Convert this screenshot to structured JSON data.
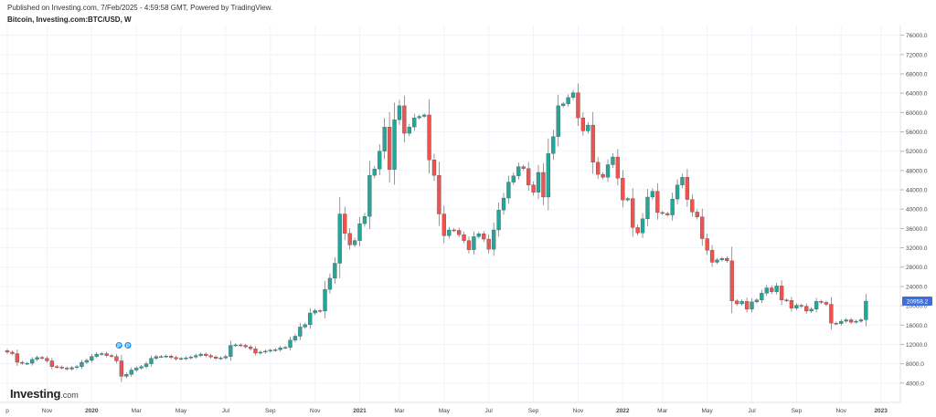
{
  "header": {
    "published": "Published on Investing.com, 7/Feb/2025 - 4:59:58 GMT, Powered by TradingView.",
    "symbol": "Bitcoin, Investing.com:BTC/USD, W"
  },
  "brand": {
    "name": "Investing",
    "suffix": ".com"
  },
  "markers": {
    "label": "P"
  },
  "colors": {
    "up": "#26a69a",
    "down": "#ef5350",
    "last_price_bg": "#3d6ee0",
    "grid": "#f0f3fa",
    "axis_text": "#4a4a4a"
  },
  "chart_data": {
    "type": "candlestick",
    "title": "Bitcoin, Investing.com:BTC/USD, W",
    "ylim": [
      0,
      78000
    ],
    "y_ticks": [
      "76000.0",
      "72000.0",
      "68000.0",
      "64000.0",
      "60000.0",
      "56000.0",
      "52000.0",
      "48000.0",
      "44000.0",
      "40000.0",
      "36000.0",
      "32000.0",
      "28000.0",
      "24000.0",
      "20000.0",
      "16000.0",
      "12000.0",
      "8000.0",
      "4000.0"
    ],
    "y_tick_values": [
      76000,
      72000,
      68000,
      64000,
      60000,
      56000,
      52000,
      48000,
      44000,
      40000,
      36000,
      32000,
      28000,
      24000,
      20000,
      16000,
      12000,
      8000,
      4000
    ],
    "x_labels": [
      {
        "label": "p",
        "week": 0
      },
      {
        "label": "Nov",
        "week": 8
      },
      {
        "label": "2020",
        "week": 17
      },
      {
        "label": "Mar",
        "week": 26
      },
      {
        "label": "May",
        "week": 35
      },
      {
        "label": "Jul",
        "week": 44
      },
      {
        "label": "Sep",
        "week": 53
      },
      {
        "label": "Nov",
        "week": 62
      },
      {
        "label": "2021",
        "week": 71
      },
      {
        "label": "Mar",
        "week": 79
      },
      {
        "label": "May",
        "week": 88
      },
      {
        "label": "Jul",
        "week": 97
      },
      {
        "label": "Sep",
        "week": 106
      },
      {
        "label": "Nov",
        "week": 115
      },
      {
        "label": "2022",
        "week": 124
      },
      {
        "label": "Mar",
        "week": 132
      },
      {
        "label": "May",
        "week": 141
      },
      {
        "label": "Jul",
        "week": 150
      },
      {
        "label": "Sep",
        "week": 159
      },
      {
        "label": "Nov",
        "week": 168
      },
      {
        "label": "2023",
        "week": 176
      }
    ],
    "last_price": 20958.2,
    "last_price_label": "20958.2",
    "closes": [
      10400,
      10100,
      8300,
      8100,
      8100,
      8900,
      9300,
      9100,
      8600,
      7400,
      7300,
      7100,
      6900,
      7200,
      7400,
      8300,
      8700,
      9500,
      10000,
      10100,
      9700,
      9500,
      8600,
      5400,
      5800,
      6700,
      7100,
      7400,
      8000,
      9100,
      9500,
      9500,
      9600,
      9300,
      9000,
      9100,
      9200,
      9400,
      9700,
      10000,
      9700,
      9400,
      9100,
      9200,
      9500,
      11800,
      11900,
      11800,
      11500,
      11100,
      10200,
      10400,
      10600,
      10800,
      10900,
      11300,
      11400,
      12900,
      13700,
      15600,
      16100,
      18500,
      19000,
      18900,
      23400,
      25700,
      28800,
      39000,
      35000,
      32600,
      33500,
      37000,
      38500,
      47000,
      48300,
      52000,
      57000,
      48200,
      58500,
      61400,
      55700,
      57000,
      58900,
      59200,
      59500,
      50200,
      47000,
      39000,
      34500,
      35700,
      35600,
      34700,
      33500,
      31600,
      34300,
      34900,
      33800,
      31700,
      35700,
      39800,
      42300,
      45600,
      46900,
      48800,
      48400,
      45000,
      43500,
      47600,
      42500,
      51500,
      55000,
      61400,
      61800,
      63100,
      64100,
      58900,
      56200,
      57400,
      49700,
      47200,
      46600,
      49200,
      50800,
      46400,
      41900,
      42200,
      36200,
      35100,
      38000,
      42500,
      43700,
      39300,
      39100,
      38800,
      42100,
      45000,
      46600,
      42000,
      39400,
      38400,
      33900,
      31500,
      29000,
      29500,
      29800,
      29300,
      21000,
      20400,
      20900,
      19300,
      20800,
      21200,
      22600,
      23700,
      22900,
      24100,
      21200,
      21100,
      19500,
      20100,
      19900,
      18900,
      19300,
      20900,
      20700,
      20300,
      16400,
      16300,
      16800,
      17100,
      16600,
      16800,
      17100,
      20958
    ]
  }
}
